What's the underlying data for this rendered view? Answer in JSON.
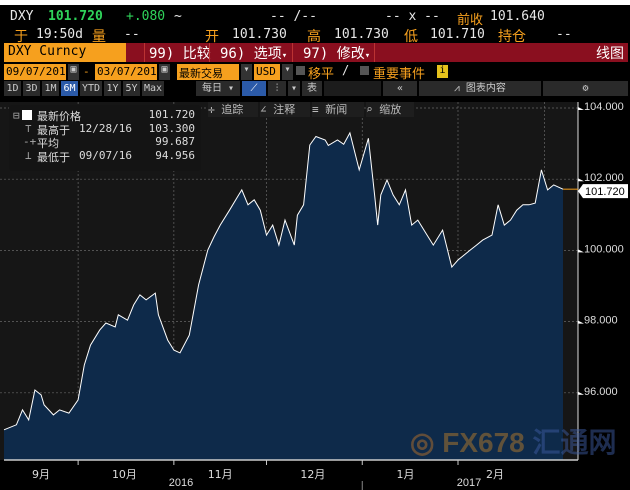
{
  "quote": {
    "ticker": "DXY",
    "last": "101.720",
    "change": "+.080",
    "bid_ask": "-- /--",
    "size": "-- x --",
    "prev_close_label": "前收",
    "prev_close": "101.640",
    "time_label": "于",
    "time": "19:50d",
    "volume_label": "量",
    "volume": "--",
    "open_label": "开",
    "open": "101.730",
    "high_label": "高",
    "high": "101.730",
    "low_label": "低",
    "low": "101.710",
    "oi_label": "持仓",
    "oi": "--"
  },
  "command_bar": {
    "security": "DXY Curncy",
    "compare": "99) 比较",
    "options": "96) 选项",
    "edit": "97) 修改",
    "chart_type": "线图"
  },
  "controls": {
    "start_date": "09/07/2016",
    "end_date": "03/07/2017",
    "separator": "-",
    "price_type": "最新交易",
    "currency": "USD",
    "moving_avg": "移平",
    "events": "重要事件"
  },
  "periods": [
    "1D",
    "3D",
    "1M",
    "6M",
    "YTD",
    "1Y",
    "5Y",
    "Max"
  ],
  "active_period": "6M",
  "frequency": "每日",
  "table_label": "表",
  "collapse": "«",
  "chart_content": "图表内容",
  "chart_tools": [
    "追踪",
    "注释",
    "新闻",
    "缩放"
  ],
  "legend": [
    {
      "label": "最新价格",
      "date": "",
      "value": "101.720"
    },
    {
      "label": "最高于",
      "date": "12/28/16",
      "value": "103.300"
    },
    {
      "label": "平均",
      "date": "",
      "value": "99.687"
    },
    {
      "label": "最低于",
      "date": "09/07/16",
      "value": "94.956"
    }
  ],
  "watermark": "FX678 汇通网",
  "colors": {
    "up": "#2fd35a",
    "accent": "#f6a01e",
    "bar": "#8a0f1f",
    "area": "#0e2a4a",
    "line": "#ffffff"
  },
  "chart_data": {
    "type": "area",
    "y_ticks": [
      "104.000",
      "102.000",
      "100.000",
      "98.000",
      "96.000"
    ],
    "ylim": [
      94.1,
      104.3
    ],
    "last_value_label": "101.720",
    "x_month_labels": [
      "9月",
      "10月",
      "11月",
      "12月",
      "1月",
      "2月"
    ],
    "x_year_labels": [
      "2016",
      "2017"
    ],
    "grid": true,
    "points": [
      [
        "2016-09-07",
        94.96
      ],
      [
        "2016-09-11",
        95.1
      ],
      [
        "2016-09-13",
        95.52
      ],
      [
        "2016-09-15",
        95.24
      ],
      [
        "2016-09-17",
        96.08
      ],
      [
        "2016-09-19",
        95.94
      ],
      [
        "2016-09-20",
        95.66
      ],
      [
        "2016-09-23",
        95.38
      ],
      [
        "2016-09-25",
        95.52
      ],
      [
        "2016-09-28",
        95.43
      ],
      [
        "2016-10-01",
        95.8
      ],
      [
        "2016-10-03",
        96.78
      ],
      [
        "2016-10-05",
        97.34
      ],
      [
        "2016-10-08",
        97.76
      ],
      [
        "2016-10-10",
        97.96
      ],
      [
        "2016-10-13",
        97.85
      ],
      [
        "2016-10-14",
        98.19
      ],
      [
        "2016-10-17",
        98.04
      ],
      [
        "2016-10-19",
        98.47
      ],
      [
        "2016-10-21",
        98.75
      ],
      [
        "2016-10-23",
        98.61
      ],
      [
        "2016-10-26",
        98.8
      ],
      [
        "2016-10-27",
        98.19
      ],
      [
        "2016-10-30",
        97.48
      ],
      [
        "2016-11-01",
        97.2
      ],
      [
        "2016-11-03",
        97.12
      ],
      [
        "2016-11-06",
        97.62
      ],
      [
        "2016-11-09",
        99.03
      ],
      [
        "2016-11-12",
        100.01
      ],
      [
        "2016-11-14",
        100.38
      ],
      [
        "2016-11-16",
        100.71
      ],
      [
        "2016-11-19",
        101.13
      ],
      [
        "2016-11-22",
        101.56
      ],
      [
        "2016-11-23",
        101.7
      ],
      [
        "2016-11-25",
        101.28
      ],
      [
        "2016-11-27",
        101.42
      ],
      [
        "2016-11-29",
        101.13
      ],
      [
        "2016-12-01",
        100.43
      ],
      [
        "2016-12-03",
        100.71
      ],
      [
        "2016-12-05",
        100.15
      ],
      [
        "2016-12-07",
        100.85
      ],
      [
        "2016-12-10",
        100.15
      ],
      [
        "2016-12-11",
        100.99
      ],
      [
        "2016-12-13",
        101.28
      ],
      [
        "2016-12-15",
        102.96
      ],
      [
        "2016-12-17",
        103.2
      ],
      [
        "2016-12-20",
        103.1
      ],
      [
        "2016-12-21",
        102.95
      ],
      [
        "2016-12-24",
        103.1
      ],
      [
        "2016-12-26",
        102.98
      ],
      [
        "2016-12-28",
        103.3
      ],
      [
        "2016-12-31",
        102.26
      ],
      [
        "2017-01-03",
        103.15
      ],
      [
        "2017-01-05",
        101.56
      ],
      [
        "2017-01-06",
        100.71
      ],
      [
        "2017-01-07",
        101.56
      ],
      [
        "2017-01-09",
        101.98
      ],
      [
        "2017-01-11",
        101.56
      ],
      [
        "2017-01-13",
        101.28
      ],
      [
        "2017-01-15",
        101.7
      ],
      [
        "2017-01-17",
        100.71
      ],
      [
        "2017-01-19",
        100.85
      ],
      [
        "2017-01-22",
        100.43
      ],
      [
        "2017-01-24",
        100.15
      ],
      [
        "2017-01-27",
        100.57
      ],
      [
        "2017-01-30",
        99.53
      ],
      [
        "2017-02-01",
        99.73
      ],
      [
        "2017-02-05",
        100.01
      ],
      [
        "2017-02-07",
        100.15
      ],
      [
        "2017-02-09",
        100.29
      ],
      [
        "2017-02-12",
        100.43
      ],
      [
        "2017-02-14",
        101.28
      ],
      [
        "2017-02-16",
        100.71
      ],
      [
        "2017-02-18",
        100.85
      ],
      [
        "2017-02-20",
        101.13
      ],
      [
        "2017-02-22",
        101.28
      ],
      [
        "2017-02-24",
        101.28
      ],
      [
        "2017-02-26",
        101.33
      ],
      [
        "2017-02-28",
        102.26
      ],
      [
        "2017-03-02",
        101.7
      ],
      [
        "2017-03-04",
        101.84
      ],
      [
        "2017-03-07",
        101.72
      ]
    ]
  }
}
